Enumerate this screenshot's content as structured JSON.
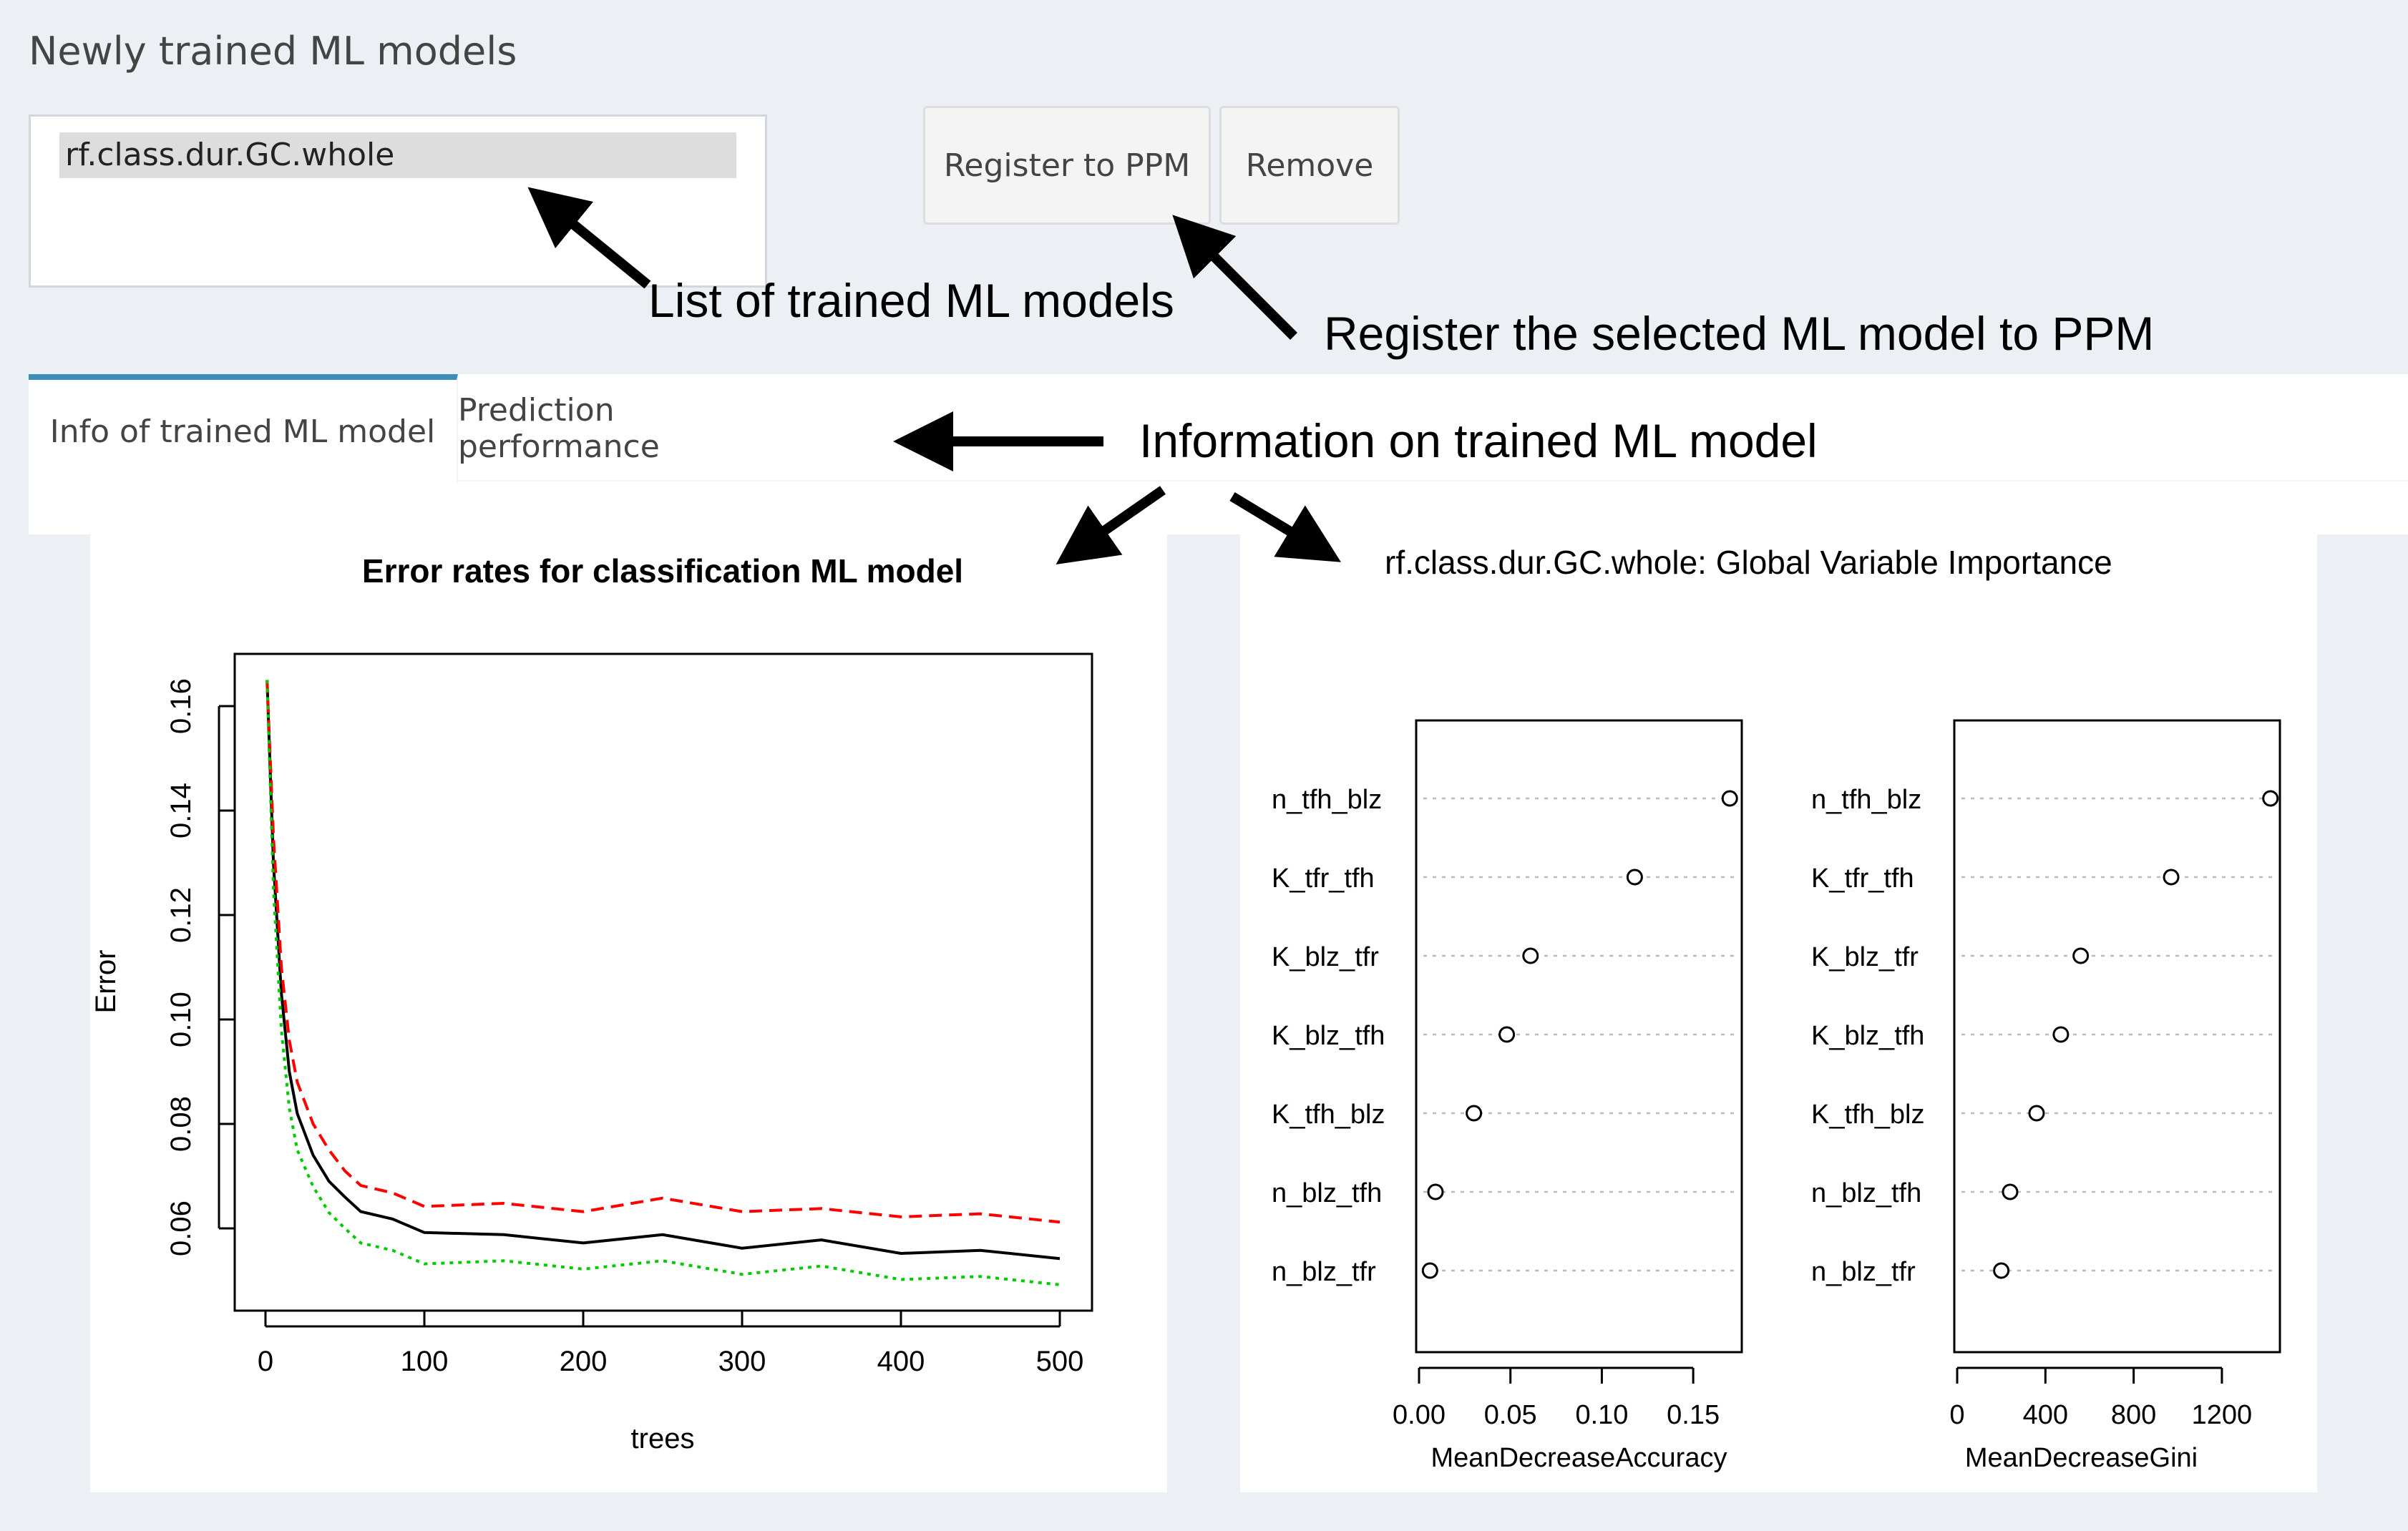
{
  "section_title": "Newly trained ML models",
  "models": [
    {
      "name": "rf.class.dur.GC.whole",
      "selected": true
    }
  ],
  "buttons": {
    "register": "Register to PPM",
    "remove": "Remove"
  },
  "tabs": [
    {
      "label": "Info of trained ML model",
      "active": true
    },
    {
      "label": "Prediction performance",
      "active": false
    }
  ],
  "annotations": {
    "list": "List of trained ML models",
    "register": "Register the selected ML model to PPM",
    "info": "Information on trained ML model"
  },
  "colors": {
    "accent": "#3c8dbc",
    "series_red": "#ff0000",
    "series_green": "#00cc00",
    "series_black": "#000000"
  },
  "chart_data": [
    {
      "type": "line",
      "title": "Error rates for classification ML model",
      "xlabel": "trees",
      "ylabel": "Error",
      "xlim": [
        0,
        500
      ],
      "ylim": [
        0.05,
        0.165
      ],
      "xticks": [
        "0",
        "100",
        "200",
        "300",
        "400",
        "500"
      ],
      "yticks": [
        "0.06",
        "0.08",
        "0.10",
        "0.12",
        "0.14",
        "0.16"
      ],
      "series": [
        {
          "color": "#000000",
          "style": "solid",
          "x": [
            1,
            5,
            10,
            15,
            20,
            30,
            40,
            50,
            60,
            80,
            100,
            150,
            200,
            250,
            300,
            350,
            400,
            450,
            500
          ],
          "y": [
            0.165,
            0.13,
            0.105,
            0.09,
            0.082,
            0.074,
            0.069,
            0.066,
            0.064,
            0.061,
            0.06,
            0.058,
            0.058,
            0.058,
            0.057,
            0.057,
            0.056,
            0.055,
            0.055
          ]
        },
        {
          "color": "#ff0000",
          "style": "dashed",
          "x": [
            1,
            5,
            10,
            15,
            20,
            30,
            40,
            50,
            60,
            80,
            100,
            150,
            200,
            250,
            300,
            350,
            400,
            450,
            500
          ],
          "y": [
            0.165,
            0.135,
            0.11,
            0.096,
            0.088,
            0.08,
            0.075,
            0.071,
            0.069,
            0.066,
            0.065,
            0.064,
            0.064,
            0.065,
            0.064,
            0.063,
            0.063,
            0.062,
            0.062
          ]
        },
        {
          "color": "#00cc00",
          "style": "dotted",
          "x": [
            1,
            5,
            10,
            15,
            20,
            30,
            40,
            50,
            60,
            80,
            100,
            150,
            200,
            250,
            300,
            350,
            400,
            450,
            500
          ],
          "y": [
            0.165,
            0.125,
            0.098,
            0.083,
            0.075,
            0.068,
            0.063,
            0.06,
            0.058,
            0.055,
            0.054,
            0.053,
            0.053,
            0.053,
            0.052,
            0.052,
            0.051,
            0.05,
            0.05
          ]
        }
      ]
    },
    {
      "type": "scatter",
      "title": "rf.class.dur.GC.whole: Global Variable Importance",
      "categories": [
        "n_tfh_blz",
        "K_tfr_tfh",
        "K_blz_tfr",
        "K_blz_tfh",
        "K_tfh_blz",
        "n_blz_tfh",
        "n_blz_tfr"
      ],
      "panels": [
        {
          "xlabel": "MeanDecreaseAccuracy",
          "xlim": [
            0,
            0.175
          ],
          "xticks": [
            0.0,
            0.05,
            0.1,
            0.15
          ],
          "xticklabels": [
            "0.00",
            "0.05",
            "0.10",
            "0.15"
          ],
          "values": [
            0.17,
            0.118,
            0.061,
            0.048,
            0.03,
            0.009,
            0.006
          ]
        },
        {
          "xlabel": "MeanDecreaseGini",
          "xlim": [
            0,
            1450
          ],
          "xticks": [
            0,
            400,
            800,
            1200
          ],
          "xticklabels": [
            "0",
            "400",
            "800",
            "1200"
          ],
          "values": [
            1420,
            970,
            560,
            470,
            360,
            240,
            200
          ]
        }
      ]
    }
  ]
}
